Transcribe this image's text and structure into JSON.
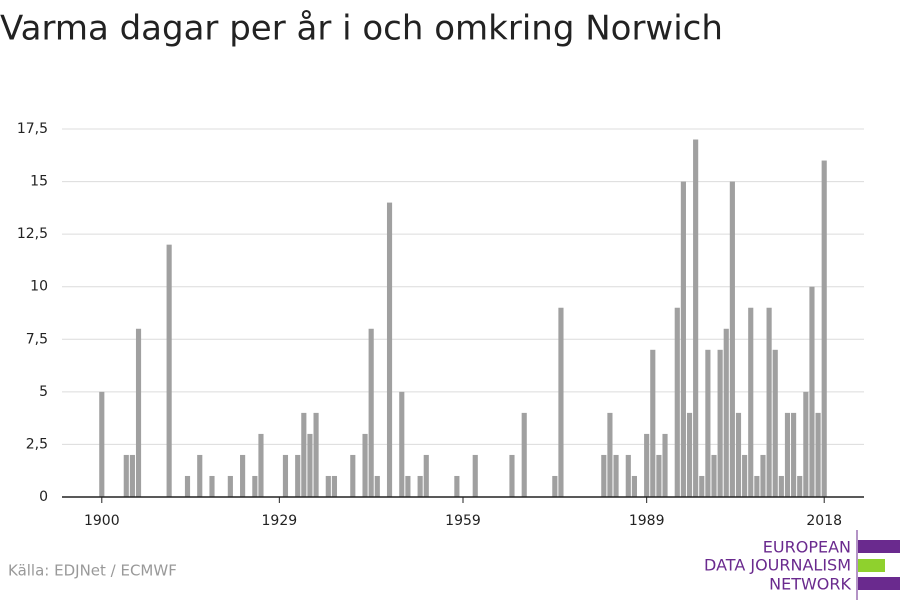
{
  "chart_data": {
    "type": "bar",
    "title": "Varma dagar per år i och omkring Norwich",
    "source": "Källa: EDJNet / ECMWF",
    "logo_lines": [
      "EUROPEAN",
      "DATA JOURNALISM",
      "NETWORK"
    ],
    "color": "#a0a0a0",
    "x": [
      1900,
      1901,
      1902,
      1903,
      1904,
      1905,
      1906,
      1907,
      1908,
      1909,
      1910,
      1911,
      1912,
      1913,
      1914,
      1915,
      1916,
      1917,
      1918,
      1919,
      1920,
      1921,
      1922,
      1923,
      1924,
      1925,
      1926,
      1927,
      1928,
      1929,
      1930,
      1931,
      1932,
      1933,
      1934,
      1935,
      1936,
      1937,
      1938,
      1939,
      1940,
      1941,
      1942,
      1943,
      1944,
      1945,
      1946,
      1947,
      1948,
      1949,
      1950,
      1951,
      1952,
      1953,
      1954,
      1955,
      1956,
      1957,
      1958,
      1959,
      1960,
      1961,
      1962,
      1963,
      1964,
      1965,
      1966,
      1967,
      1968,
      1969,
      1970,
      1971,
      1972,
      1973,
      1974,
      1975,
      1976,
      1977,
      1978,
      1979,
      1980,
      1981,
      1982,
      1983,
      1984,
      1985,
      1986,
      1987,
      1988,
      1989,
      1990,
      1991,
      1992,
      1993,
      1994,
      1995,
      1996,
      1997,
      1998,
      1999,
      2000,
      2001,
      2002,
      2003,
      2004,
      2005,
      2006,
      2007,
      2008,
      2009,
      2010,
      2011,
      2012,
      2013,
      2014,
      2015,
      2016,
      2017,
      2018
    ],
    "values": [
      5,
      0,
      0,
      0,
      2,
      2,
      8,
      0,
      0,
      0,
      0,
      12,
      0,
      0,
      1,
      0,
      2,
      0,
      1,
      0,
      0,
      1,
      0,
      2,
      0,
      1,
      3,
      0,
      0,
      0,
      2,
      0,
      2,
      4,
      3,
      4,
      0,
      1,
      1,
      0,
      0,
      2,
      0,
      3,
      8,
      1,
      0,
      14,
      0,
      5,
      1,
      0,
      1,
      2,
      0,
      0,
      0,
      0,
      1,
      0,
      0,
      2,
      0,
      0,
      0,
      0,
      0,
      2,
      0,
      4,
      0,
      0,
      0,
      0,
      1,
      9,
      0,
      0,
      0,
      0,
      0,
      0,
      2,
      4,
      2,
      0,
      2,
      1,
      0,
      3,
      7,
      2,
      3,
      0,
      9,
      15,
      4,
      17,
      1,
      7,
      2,
      7,
      8,
      15,
      4,
      2,
      9,
      1,
      2,
      9,
      7,
      1,
      4,
      4,
      1,
      5,
      10,
      4,
      16
    ],
    "xlim": [
      1893.5,
      2024.5
    ],
    "xticks": [
      1900,
      1929,
      1959,
      1989,
      2018
    ],
    "ylim": [
      0,
      17.5
    ],
    "yticks": [
      0,
      {
        "value": 2.5,
        "label": "2,5"
      },
      5,
      {
        "value": 7.5,
        "label": "7,5"
      },
      10,
      {
        "value": 12.5,
        "label": "12,5"
      },
      15,
      {
        "value": 17.5,
        "label": "17,5"
      }
    ],
    "grid": true
  }
}
